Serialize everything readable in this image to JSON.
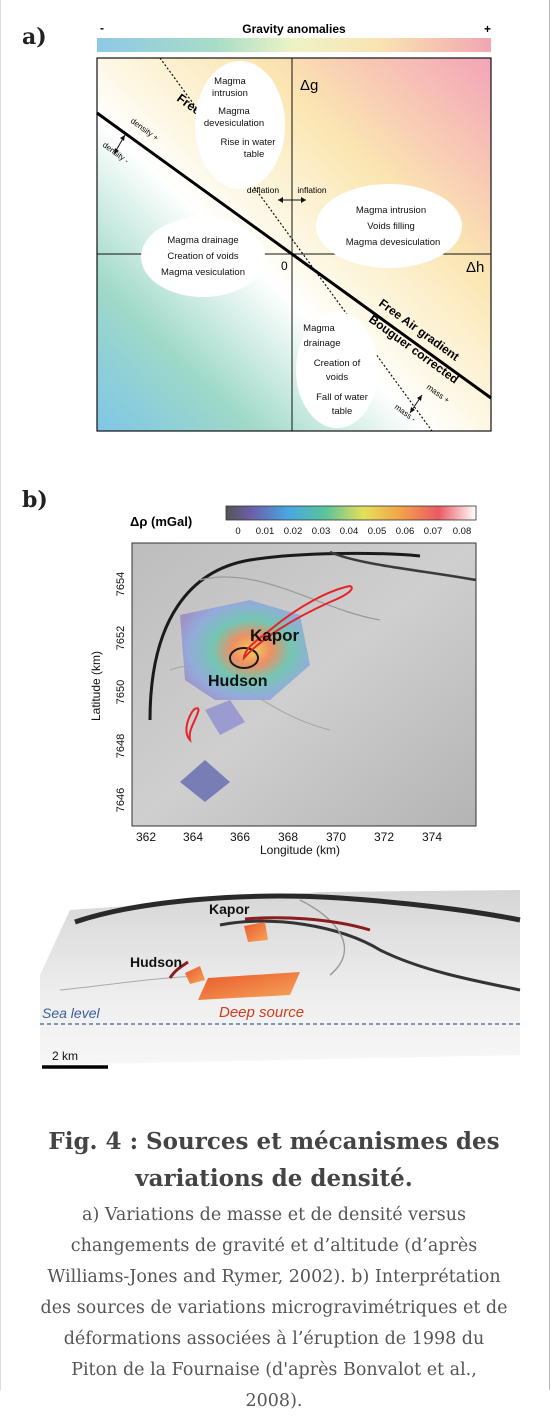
{
  "panel_a": {
    "label": "a)",
    "bar_title": "Gravity anomalies",
    "bar_minus": "-",
    "bar_plus": "+",
    "axis_dg": "Δg",
    "axis_dh": "Δh",
    "origin": "0",
    "free_air_gradient": "Free Air gradient",
    "bouguer_line1": "Free Air gradient",
    "bouguer_line2": "Bouguer corrected",
    "density_plus": "density +",
    "density_minus": "density -",
    "mass_plus": "mass +",
    "mass_minus": "mass -",
    "deflation": "deflation",
    "inflation": "inflation",
    "ellipse_top": [
      "Magma",
      "intrusion",
      "Magma",
      "devesiculation",
      "Rise in water",
      "table"
    ],
    "ellipse_right": [
      "Magma intrusion",
      "Voids filling",
      "Magma devesiculation"
    ],
    "ellipse_left": [
      "Magma drainage",
      "Creation of voids",
      "Magma vesiculation"
    ],
    "ellipse_bottom": [
      "Magma",
      "drainage",
      "Creation of",
      "voids",
      "Fall of water",
      "table"
    ]
  },
  "panel_b": {
    "label": "b)",
    "colorbar_title": "Δρ (mGal)",
    "colorbar_ticks": [
      "0",
      "0.01",
      "0.02",
      "0.03",
      "0.04",
      "0.05",
      "0.06",
      "0.07",
      "0.08"
    ],
    "ylabel": "Latitude (km)",
    "xlabel": "Longitude (km)",
    "y_ticks": [
      "7654",
      "7652",
      "7650",
      "7648",
      "7646"
    ],
    "x_ticks": [
      "362",
      "364",
      "366",
      "368",
      "370",
      "372",
      "374"
    ],
    "map_kapor": "Kapor",
    "map_hudson": "Hudson",
    "view3d_kapor": "Kapor",
    "view3d_hudson": "Hudson",
    "sea_level": "Sea level",
    "deep_source": "Deep source",
    "scale": "2 km"
  },
  "caption": {
    "title_line1": "Fig. 4 : Sources et mécanismes des",
    "title_line2": "variations de densité.",
    "body_lines": [
      "a) Variations de masse et de densité versus",
      "changements de gravité et d’altitude (d’après",
      "Williams-Jones and Rymer, 2002). b) Interprétation",
      "des sources de variations microgravimétriques et de",
      "déformations associées à l’éruption de 1998 du",
      "Piton de la Fournaise (d'après Bonvalot et al.,",
      "2008)."
    ]
  },
  "colors": {
    "magma_path": "#e8222a",
    "sea_level_line": "#3a5f9a",
    "deep_source_text": "#d23a1c"
  }
}
